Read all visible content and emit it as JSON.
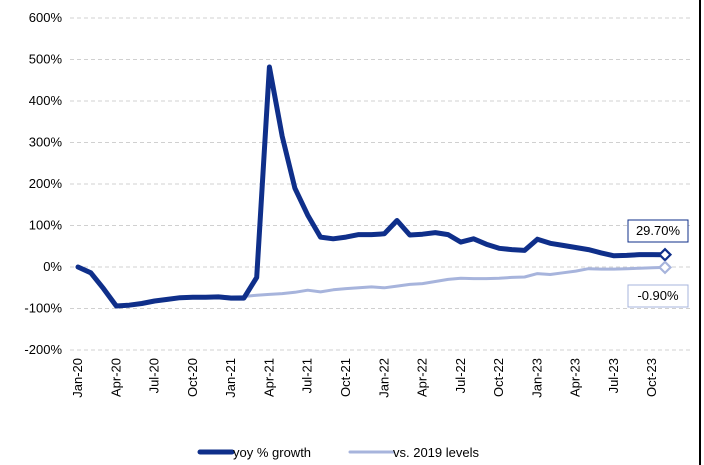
{
  "chart_data": {
    "type": "line",
    "title": "",
    "xlabel": "",
    "ylabel": "",
    "ylim": [
      -200,
      600
    ],
    "yticks": [
      -200,
      -100,
      0,
      100,
      200,
      300,
      400,
      500,
      600
    ],
    "ytick_labels": [
      "-200%",
      "-100%",
      "0%",
      "100%",
      "200%",
      "300%",
      "400%",
      "500%",
      "600%"
    ],
    "x": [
      "Jan-20",
      "Feb-20",
      "Mar-20",
      "Apr-20",
      "May-20",
      "Jun-20",
      "Jul-20",
      "Aug-20",
      "Sep-20",
      "Oct-20",
      "Nov-20",
      "Dec-20",
      "Jan-21",
      "Feb-21",
      "Mar-21",
      "Apr-21",
      "May-21",
      "Jun-21",
      "Jul-21",
      "Aug-21",
      "Sep-21",
      "Oct-21",
      "Nov-21",
      "Dec-21",
      "Jan-22",
      "Feb-22",
      "Mar-22",
      "Apr-22",
      "May-22",
      "Jun-22",
      "Jul-22",
      "Aug-22",
      "Sep-22",
      "Oct-22",
      "Nov-22",
      "Dec-22",
      "Jan-23",
      "Feb-23",
      "Mar-23",
      "Apr-23",
      "May-23",
      "Jun-23",
      "Jul-23",
      "Aug-23",
      "Sep-23",
      "Oct-23",
      "Nov-23"
    ],
    "xtick_labels": [
      "Jan-20",
      "Apr-20",
      "Jul-20",
      "Oct-20",
      "Jan-21",
      "Apr-21",
      "Jul-21",
      "Oct-21",
      "Jan-22",
      "Apr-22",
      "Jul-22",
      "Oct-22",
      "Jan-23",
      "Apr-23",
      "Jul-23",
      "Oct-23"
    ],
    "xtick_every": 3,
    "grid": true,
    "legend_position": "bottom",
    "series": [
      {
        "name": "yoy % growth",
        "color": "#0f2f8a",
        "values": [
          0,
          -14,
          -52,
          -94,
          -92,
          -88,
          -82,
          -78,
          -74,
          -73,
          -73,
          -72,
          -75,
          -75,
          -25,
          482,
          315,
          190,
          125,
          72,
          68,
          72,
          78,
          78,
          80,
          112,
          77,
          79,
          83,
          78,
          60,
          68,
          55,
          45,
          42,
          40,
          67,
          57,
          52,
          47,
          42,
          34,
          27,
          28,
          30,
          30,
          29.7
        ],
        "end_label": "29.70%"
      },
      {
        "name": "vs. 2019 levels",
        "color": "#a7b4dc",
        "values": [
          0,
          -14,
          -52,
          -94,
          -92,
          -88,
          -82,
          -78,
          -75,
          -73,
          -72,
          -70,
          -72,
          -71,
          -68,
          -66,
          -64,
          -61,
          -56,
          -60,
          -55,
          -52,
          -50,
          -48,
          -50,
          -46,
          -42,
          -40,
          -35,
          -30,
          -27,
          -28,
          -28,
          -27,
          -25,
          -24,
          -16,
          -18,
          -14,
          -10,
          -4,
          -5,
          -5,
          -4,
          -3,
          -2,
          -0.9
        ],
        "end_label": "-0.90%"
      }
    ]
  }
}
